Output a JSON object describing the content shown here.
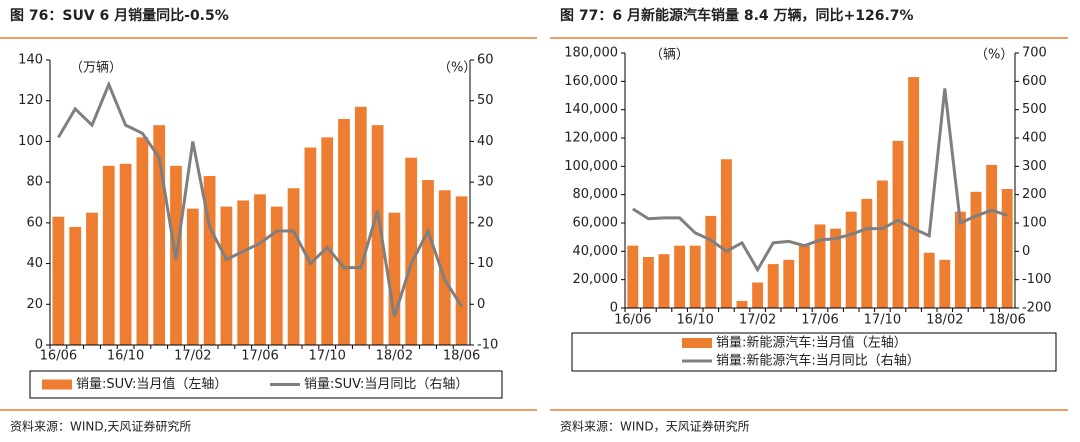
{
  "chart_data": [
    {
      "type": "bar_line",
      "title": "图 76：SUV 6 月销量同比-0.5%",
      "ylabel": "（万辆）",
      "y2label": "（%）",
      "categories": [
        "16/06",
        null,
        null,
        null,
        "16/10",
        null,
        null,
        null,
        "17/02",
        null,
        null,
        null,
        "17/06",
        null,
        null,
        null,
        "17/10",
        null,
        null,
        null,
        "18/02",
        null,
        null,
        null,
        "18/06"
      ],
      "series": [
        {
          "name": "销量:SUV:当月值（左轴）",
          "color": "#ED7D31",
          "kind": "bar",
          "values": [
            63,
            58,
            65,
            88,
            89,
            102,
            108,
            88,
            67,
            83,
            68,
            71,
            74,
            68,
            77,
            97,
            102,
            111,
            117,
            108,
            65,
            92,
            81,
            76,
            73
          ]
        },
        {
          "name": "销量:SUV:当月同比（右轴）",
          "color": "#7F7F7F",
          "kind": "line",
          "axis": "y2",
          "values": [
            41,
            48,
            44,
            54,
            44,
            42,
            36,
            11,
            40,
            19,
            11,
            13,
            15,
            18,
            18,
            10,
            14,
            9,
            9,
            23,
            -3,
            10,
            18,
            6,
            -0.5
          ]
        }
      ],
      "ylim": [
        0,
        140
      ],
      "yticks": [
        0,
        20,
        40,
        60,
        80,
        100,
        120,
        140
      ],
      "y2lim": [
        -10,
        60
      ],
      "y2ticks": [
        -10,
        0,
        10,
        20,
        30,
        40,
        50,
        60
      ],
      "source": "资料来源：WIND,天风证券研究所"
    },
    {
      "type": "bar_line",
      "title": "图 77：6 月新能源汽车销量 8.4 万辆，同比+126.7%",
      "ylabel": "（辆）",
      "y2label": "（%）",
      "categories": [
        "16/06",
        null,
        null,
        null,
        "16/10",
        null,
        null,
        null,
        "17/02",
        null,
        null,
        null,
        "17/06",
        null,
        null,
        null,
        "17/10",
        null,
        null,
        null,
        "18/02",
        null,
        null,
        null,
        "18/06"
      ],
      "series": [
        {
          "name": "销量:新能源汽车:当月值（左轴）",
          "color": "#ED7D31",
          "kind": "bar",
          "values": [
            44000,
            36000,
            38000,
            44000,
            44000,
            65000,
            105000,
            5000,
            18000,
            31000,
            34000,
            44000,
            59000,
            56000,
            68000,
            77000,
            90000,
            118000,
            163000,
            39000,
            34000,
            68000,
            82000,
            101000,
            84000
          ]
        },
        {
          "name": "销量:新能源汽车:当月同比（右轴）",
          "color": "#7F7F7F",
          "kind": "line",
          "axis": "y2",
          "values": [
            150,
            115,
            118,
            118,
            65,
            40,
            0,
            30,
            -65,
            30,
            35,
            20,
            40,
            45,
            60,
            80,
            80,
            110,
            80,
            55,
            575,
            100,
            125,
            145,
            127
          ]
        }
      ],
      "ylim": [
        0,
        180000
      ],
      "yticks": [
        0,
        {
          "value": 20000,
          "label": "20,000"
        },
        {
          "value": 40000,
          "label": "40,000"
        },
        {
          "value": 60000,
          "label": "60,000"
        },
        {
          "value": 80000,
          "label": "80,000"
        },
        {
          "value": 100000,
          "label": "100,000"
        },
        {
          "value": 120000,
          "label": "120,000"
        },
        {
          "value": 140000,
          "label": "140,000"
        },
        {
          "value": 160000,
          "label": "160,000"
        },
        {
          "value": 180000,
          "label": "180,000"
        }
      ],
      "y2lim": [
        -200,
        700
      ],
      "y2ticks": [
        -200,
        -100,
        0,
        100,
        200,
        300,
        400,
        500,
        600,
        700
      ],
      "source": "资料来源：WIND，天风证券研究所"
    }
  ]
}
